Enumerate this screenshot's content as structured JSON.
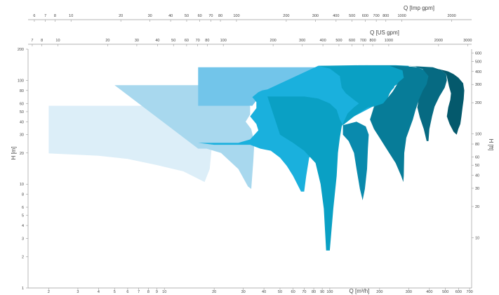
{
  "chart_data": {
    "type": "area",
    "x_scale": "log",
    "y_scale": "log",
    "grid": false,
    "xlim": [
      1.5,
      720
    ],
    "ylim": [
      1,
      200
    ],
    "bottom_axis": {
      "label": "Q [m³/h]",
      "ticks": [
        {
          "v": 2,
          "t": "2"
        },
        {
          "v": 3,
          "t": "3"
        },
        {
          "v": 4,
          "t": "4"
        },
        {
          "v": 5,
          "t": "5"
        },
        {
          "v": 6,
          "t": "6"
        },
        {
          "v": 7,
          "t": "7"
        },
        {
          "v": 8,
          "t": "8"
        },
        {
          "v": 9,
          "t": "9"
        },
        {
          "v": 10,
          "t": "10"
        },
        {
          "v": 20,
          "t": "20"
        },
        {
          "v": 30,
          "t": "30"
        },
        {
          "v": 40,
          "t": "40"
        },
        {
          "v": 50,
          "t": "50"
        },
        {
          "v": 60,
          "t": "60"
        },
        {
          "v": 70,
          "t": "70"
        },
        {
          "v": 80,
          "t": "80"
        },
        {
          "v": 90,
          "t": "90"
        },
        {
          "v": 100,
          "t": "100"
        },
        {
          "v": 200,
          "t": "200"
        },
        {
          "v": 300,
          "t": "300"
        },
        {
          "v": 400,
          "t": "400"
        },
        {
          "v": 500,
          "t": "500"
        },
        {
          "v": 600,
          "t": "600"
        },
        {
          "v": 700,
          "t": "700"
        }
      ]
    },
    "left_axis": {
      "label": "H [m]",
      "ticks": [
        {
          "v": 1,
          "t": "1"
        },
        {
          "v": 2,
          "t": "2"
        },
        {
          "v": 3,
          "t": "3"
        },
        {
          "v": 4,
          "t": "4"
        },
        {
          "v": 5,
          "t": "5"
        },
        {
          "v": 6,
          "t": "6"
        },
        {
          "v": 8,
          "t": "8"
        },
        {
          "v": 10,
          "t": "10"
        },
        {
          "v": 20,
          "t": "20"
        },
        {
          "v": 30,
          "t": "30"
        },
        {
          "v": 40,
          "t": "40"
        },
        {
          "v": 50,
          "t": "50"
        },
        {
          "v": 60,
          "t": "60"
        },
        {
          "v": 80,
          "t": "80"
        },
        {
          "v": 100,
          "t": "100"
        },
        {
          "v": 200,
          "t": "200"
        }
      ]
    },
    "right_axis": {
      "label": "H [ft]",
      "ticks": [
        {
          "v": 10,
          "t": "10"
        },
        {
          "v": 20,
          "t": "20"
        },
        {
          "v": 30,
          "t": "30"
        },
        {
          "v": 40,
          "t": "40"
        },
        {
          "v": 50,
          "t": "50"
        },
        {
          "v": 60,
          "t": "60"
        },
        {
          "v": 80,
          "t": "80"
        },
        {
          "v": 100,
          "t": "100"
        },
        {
          "v": 200,
          "t": "200"
        },
        {
          "v": 300,
          "t": "300"
        },
        {
          "v": 400,
          "t": "400"
        },
        {
          "v": 500,
          "t": "500"
        },
        {
          "v": 600,
          "t": "600"
        }
      ]
    },
    "top_axis_us": {
      "label": "Q [US gpm]",
      "ticks": [
        {
          "v": 7,
          "t": "7"
        },
        {
          "v": 8,
          "t": "8"
        },
        {
          "v": 10,
          "t": "10"
        },
        {
          "v": 20,
          "t": "20"
        },
        {
          "v": 30,
          "t": "30"
        },
        {
          "v": 40,
          "t": "40"
        },
        {
          "v": 50,
          "t": "50"
        },
        {
          "v": 60,
          "t": "60"
        },
        {
          "v": 70,
          "t": "70"
        },
        {
          "v": 80,
          "t": "80"
        },
        {
          "v": 100,
          "t": "100"
        },
        {
          "v": 200,
          "t": "200"
        },
        {
          "v": 300,
          "t": "300"
        },
        {
          "v": 400,
          "t": "400"
        },
        {
          "v": 500,
          "t": "500"
        },
        {
          "v": 600,
          "t": "600"
        },
        {
          "v": 700,
          "t": "700"
        },
        {
          "v": 800,
          "t": "800"
        },
        {
          "v": 1000,
          "t": "1000"
        },
        {
          "v": 2000,
          "t": "2000"
        },
        {
          "v": 3000,
          "t": "3000"
        }
      ]
    },
    "top_axis_imp": {
      "label": "Q [Imp gpm]",
      "ticks": [
        {
          "v": 6,
          "t": "6"
        },
        {
          "v": 7,
          "t": "7"
        },
        {
          "v": 8,
          "t": "8"
        },
        {
          "v": 10,
          "t": "10"
        },
        {
          "v": 20,
          "t": "20"
        },
        {
          "v": 30,
          "t": "30"
        },
        {
          "v": 40,
          "t": "40"
        },
        {
          "v": 50,
          "t": "50"
        },
        {
          "v": 60,
          "t": "60"
        },
        {
          "v": 70,
          "t": "70"
        },
        {
          "v": 80,
          "t": "80"
        },
        {
          "v": 100,
          "t": "100"
        },
        {
          "v": 200,
          "t": "200"
        },
        {
          "v": 300,
          "t": "300"
        },
        {
          "v": 400,
          "t": "400"
        },
        {
          "v": 500,
          "t": "500"
        },
        {
          "v": 600,
          "t": "600"
        },
        {
          "v": 700,
          "t": "700"
        },
        {
          "v": 800,
          "t": "800"
        },
        {
          "v": 1000,
          "t": "1000"
        },
        {
          "v": 2000,
          "t": "2000"
        }
      ]
    },
    "series": [
      {
        "color": "#dceef8",
        "points": [
          [
            2,
            57
          ],
          [
            12,
            57
          ],
          [
            15,
            54
          ],
          [
            17,
            47
          ],
          [
            17.5,
            40
          ],
          [
            17.2,
            36
          ],
          [
            18.5,
            31
          ],
          [
            19.3,
            22
          ],
          [
            18.8,
            14
          ],
          [
            17.5,
            10.5
          ],
          [
            13,
            13.3
          ],
          [
            9,
            15.3
          ],
          [
            6,
            17.5
          ],
          [
            4,
            18.8
          ],
          [
            2,
            19.8
          ]
        ]
      },
      {
        "color": "#a8d8ee",
        "points": [
          [
            5,
            90
          ],
          [
            22,
            90
          ],
          [
            28,
            87
          ],
          [
            32,
            82
          ],
          [
            33.5,
            72
          ],
          [
            31.5,
            64
          ],
          [
            33,
            56
          ],
          [
            33,
            47
          ],
          [
            31,
            40
          ],
          [
            33.5,
            34
          ],
          [
            35,
            25
          ],
          [
            34.5,
            17
          ],
          [
            33.5,
            9
          ],
          [
            32,
            9.5
          ],
          [
            28,
            14
          ],
          [
            22,
            20
          ],
          [
            18,
            22
          ],
          [
            16,
            22
          ]
        ]
      },
      {
        "color": "#72c5ea",
        "points": [
          [
            16,
            134
          ],
          [
            80,
            134
          ],
          [
            96,
            130
          ],
          [
            106,
            120
          ],
          [
            110,
            103
          ],
          [
            103,
            86
          ],
          [
            104,
            74
          ],
          [
            102,
            60
          ],
          [
            98,
            45
          ],
          [
            92,
            40
          ],
          [
            75,
            38
          ],
          [
            65,
            40
          ],
          [
            55,
            44
          ],
          [
            45,
            48
          ],
          [
            40,
            50
          ],
          [
            38,
            55
          ],
          [
            36,
            64
          ],
          [
            34,
            57
          ],
          [
            16,
            57
          ]
        ]
      },
      {
        "color": "#1ab0dd",
        "points": [
          [
            16,
            25
          ],
          [
            28,
            25
          ],
          [
            33,
            27
          ],
          [
            37,
            33
          ],
          [
            36,
            38
          ],
          [
            33,
            45
          ],
          [
            36,
            54
          ],
          [
            36,
            62
          ],
          [
            34,
            69
          ],
          [
            37,
            77
          ],
          [
            39,
            80
          ],
          [
            42,
            82
          ],
          [
            85,
            138
          ],
          [
            160,
            138
          ],
          [
            200,
            132
          ],
          [
            235,
            118
          ],
          [
            250,
            103
          ],
          [
            245,
            85
          ],
          [
            220,
            72
          ],
          [
            190,
            58
          ],
          [
            140,
            45
          ],
          [
            120,
            38
          ],
          [
            110,
            34
          ],
          [
            105,
            35
          ],
          [
            95,
            27
          ],
          [
            85,
            22
          ],
          [
            75,
            18
          ],
          [
            72,
            12
          ],
          [
            70,
            8.5
          ],
          [
            67,
            8.5
          ],
          [
            60,
            12
          ],
          [
            55,
            15
          ],
          [
            50,
            18
          ],
          [
            44,
            21
          ],
          [
            38,
            22
          ],
          [
            33,
            24
          ],
          [
            20,
            24
          ]
        ]
      },
      {
        "color": "#0aa0c4",
        "points": [
          [
            42,
            70
          ],
          [
            70,
            70
          ],
          [
            85,
            67
          ],
          [
            100,
            60
          ],
          [
            110,
            52
          ],
          [
            115,
            42
          ],
          [
            120,
            37
          ],
          [
            140,
            45
          ],
          [
            170,
            55
          ],
          [
            215,
            58
          ],
          [
            230,
            75
          ],
          [
            245,
            88
          ],
          [
            280,
            100
          ],
          [
            290,
            110
          ],
          [
            300,
            130
          ],
          [
            300,
            138
          ],
          [
            250,
            140
          ],
          [
            150,
            140
          ],
          [
            85,
            138
          ],
          [
            100,
            130
          ],
          [
            115,
            110
          ],
          [
            118,
            85
          ],
          [
            125,
            75
          ],
          [
            140,
            65
          ],
          [
            150,
            60
          ],
          [
            140,
            55
          ],
          [
            128,
            48
          ],
          [
            118,
            36
          ],
          [
            115,
            28
          ],
          [
            112,
            20
          ],
          [
            110,
            12
          ],
          [
            105,
            5.8
          ],
          [
            100,
            2.3
          ],
          [
            95,
            2.3
          ],
          [
            92,
            5.8
          ],
          [
            88,
            10
          ],
          [
            82,
            16
          ],
          [
            70,
            21
          ],
          [
            60,
            25
          ],
          [
            50,
            30
          ]
        ]
      },
      {
        "color": "#0a8aad",
        "points": [
          [
            120,
            37
          ],
          [
            145,
            40
          ],
          [
            165,
            36
          ],
          [
            172,
            30
          ],
          [
            170,
            22
          ],
          [
            168,
            14
          ],
          [
            163,
            9
          ],
          [
            158,
            7
          ],
          [
            152,
            9
          ],
          [
            145,
            14
          ],
          [
            140,
            20
          ],
          [
            130,
            26
          ],
          [
            120,
            30
          ]
        ]
      },
      {
        "color": "#077c98",
        "points": [
          [
            160,
            140
          ],
          [
            270,
            138
          ],
          [
            340,
            134
          ],
          [
            375,
            125
          ],
          [
            400,
            110
          ],
          [
            395,
            95
          ],
          [
            380,
            82
          ],
          [
            355,
            70
          ],
          [
            340,
            60
          ],
          [
            330,
            52
          ],
          [
            318,
            42
          ],
          [
            305,
            35
          ],
          [
            290,
            28
          ],
          [
            282,
            20
          ],
          [
            280,
            12
          ],
          [
            278,
            10.5
          ],
          [
            270,
            12
          ],
          [
            250,
            16
          ],
          [
            220,
            22
          ],
          [
            200,
            28
          ],
          [
            185,
            34
          ],
          [
            175,
            42
          ],
          [
            185,
            56
          ],
          [
            210,
            60
          ],
          [
            240,
            78
          ],
          [
            260,
            96
          ],
          [
            280,
            106
          ],
          [
            275,
            125
          ],
          [
            230,
            138
          ]
        ]
      },
      {
        "color": "#066a82",
        "points": [
          [
            300,
            138
          ],
          [
            420,
            134
          ],
          [
            470,
            126
          ],
          [
            505,
            115
          ],
          [
            510,
            100
          ],
          [
            495,
            85
          ],
          [
            460,
            70
          ],
          [
            430,
            56
          ],
          [
            415,
            45
          ],
          [
            400,
            34
          ],
          [
            395,
            26
          ],
          [
            385,
            26
          ],
          [
            370,
            34
          ],
          [
            350,
            44
          ],
          [
            338,
            55
          ],
          [
            345,
            65
          ],
          [
            365,
            80
          ],
          [
            385,
            92
          ],
          [
            395,
            110
          ],
          [
            365,
            128
          ],
          [
            330,
            136
          ]
        ]
      },
      {
        "color": "#04596c",
        "points": [
          [
            400,
            130
          ],
          [
            460,
            128
          ],
          [
            520,
            122
          ],
          [
            560,
            115
          ],
          [
            600,
            106
          ],
          [
            640,
            94
          ],
          [
            650,
            80
          ],
          [
            645,
            66
          ],
          [
            635,
            55
          ],
          [
            625,
            45
          ],
          [
            615,
            38
          ],
          [
            598,
            34
          ],
          [
            585,
            30
          ],
          [
            560,
            32
          ],
          [
            530,
            38
          ],
          [
            510,
            45
          ],
          [
            520,
            55
          ],
          [
            535,
            65
          ],
          [
            540,
            75
          ],
          [
            525,
            88
          ],
          [
            515,
            102
          ],
          [
            505,
            115
          ],
          [
            470,
            126
          ]
        ]
      }
    ]
  }
}
